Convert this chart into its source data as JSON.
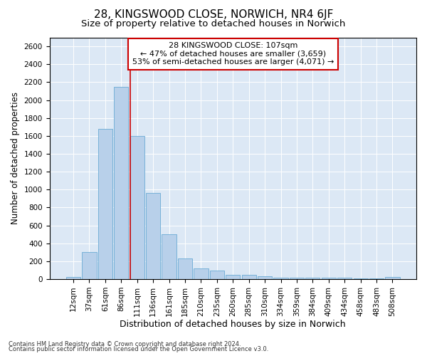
{
  "title1": "28, KINGSWOOD CLOSE, NORWICH, NR4 6JF",
  "title2": "Size of property relative to detached houses in Norwich",
  "xlabel": "Distribution of detached houses by size in Norwich",
  "ylabel": "Number of detached properties",
  "footer1": "Contains HM Land Registry data © Crown copyright and database right 2024.",
  "footer2": "Contains public sector information licensed under the Open Government Licence v3.0.",
  "annotation_line1": "28 KINGSWOOD CLOSE: 107sqm",
  "annotation_line2": "← 47% of detached houses are smaller (3,659)",
  "annotation_line3": "53% of semi-detached houses are larger (4,071) →",
  "bar_labels": [
    "12sqm",
    "37sqm",
    "61sqm",
    "86sqm",
    "111sqm",
    "136sqm",
    "161sqm",
    "185sqm",
    "210sqm",
    "235sqm",
    "260sqm",
    "285sqm",
    "310sqm",
    "334sqm",
    "359sqm",
    "384sqm",
    "409sqm",
    "434sqm",
    "458sqm",
    "483sqm",
    "508sqm"
  ],
  "bar_values": [
    25,
    300,
    1675,
    2150,
    1600,
    960,
    500,
    235,
    120,
    100,
    50,
    50,
    30,
    20,
    20,
    20,
    20,
    20,
    5,
    5,
    25
  ],
  "bar_color": "#b8d0ea",
  "bar_edgecolor": "#6aaad4",
  "vline_color": "#cc0000",
  "ylim": [
    0,
    2700
  ],
  "yticks": [
    0,
    200,
    400,
    600,
    800,
    1000,
    1200,
    1400,
    1600,
    1800,
    2000,
    2200,
    2400,
    2600
  ],
  "annotation_box_edgecolor": "#cc0000",
  "background_color": "#dce8f5",
  "title1_fontsize": 11,
  "title2_fontsize": 9.5,
  "xlabel_fontsize": 9,
  "ylabel_fontsize": 8.5,
  "tick_fontsize": 7.5,
  "footer_fontsize": 6,
  "ann_fontsize": 8
}
